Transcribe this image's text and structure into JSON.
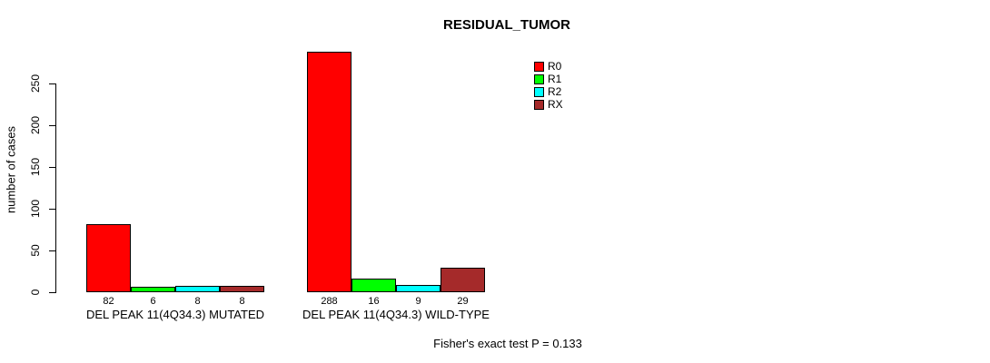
{
  "chart_data": {
    "type": "bar",
    "title": "RESIDUAL_TUMOR",
    "xlabel": "",
    "ylabel": "number of cases",
    "categories": [
      "DEL PEAK 11(4Q34.3) MUTATED",
      "DEL PEAK 11(4Q34.3) WILD-TYPE"
    ],
    "series": [
      {
        "name": "R0",
        "color": "#ff0000",
        "values": [
          82,
          288
        ]
      },
      {
        "name": "R1",
        "color": "#00ff00",
        "values": [
          6,
          16
        ]
      },
      {
        "name": "R2",
        "color": "#00ffff",
        "values": [
          8,
          9
        ]
      },
      {
        "name": "RX",
        "color": "#a52a2a",
        "values": [
          8,
          29
        ]
      }
    ],
    "y_ticks": [
      0,
      50,
      100,
      150,
      200,
      250
    ],
    "ylim": [
      0,
      250
    ],
    "grid": false,
    "legend_position": "top-right",
    "bar_value_labels_shown": true,
    "annotation": "Fisher's exact test P = 0.133"
  }
}
